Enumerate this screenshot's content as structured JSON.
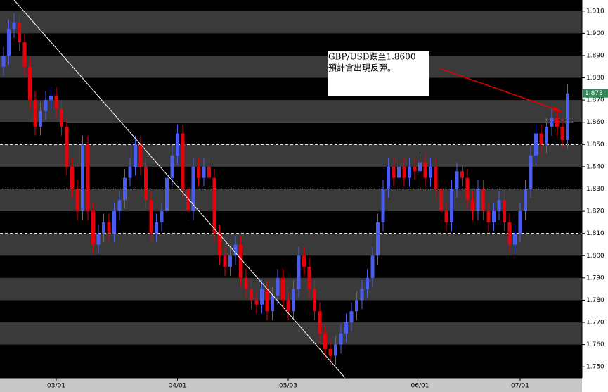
{
  "chart_data": {
    "type": "candlestick",
    "categories": [
      null,
      null,
      null,
      null,
      null,
      null,
      null,
      null,
      null,
      null,
      "03/01",
      null,
      null,
      null,
      null,
      null,
      null,
      null,
      null,
      null,
      null,
      null,
      null,
      null,
      null,
      null,
      null,
      null,
      null,
      null,
      null,
      null,
      null,
      "04/01",
      null,
      null,
      null,
      null,
      null,
      null,
      null,
      null,
      null,
      null,
      null,
      null,
      null,
      null,
      null,
      null,
      null,
      null,
      null,
      null,
      "05/03",
      null,
      null,
      null,
      null,
      null,
      null,
      null,
      null,
      null,
      null,
      null,
      null,
      null,
      null,
      null,
      null,
      null,
      null,
      null,
      null,
      null,
      null,
      null,
      null,
      "06/01",
      null,
      null,
      null,
      null,
      null,
      null,
      null,
      null,
      null,
      null,
      null,
      null,
      null,
      null,
      null,
      null,
      null,
      null,
      "07/01",
      null,
      null,
      null,
      null,
      null,
      null,
      null,
      null,
      null
    ],
    "open": [
      1.885,
      1.89,
      1.902,
      1.905,
      1.896,
      1.885,
      1.87,
      1.858,
      1.865,
      1.87,
      1.872,
      1.866,
      1.858,
      1.84,
      1.83,
      1.82,
      1.85,
      1.82,
      1.805,
      1.81,
      1.815,
      1.81,
      1.82,
      1.825,
      1.835,
      1.84,
      1.85,
      1.84,
      1.825,
      1.81,
      1.815,
      1.82,
      1.835,
      1.845,
      1.855,
      1.83,
      1.82,
      1.84,
      1.835,
      1.84,
      1.835,
      1.81,
      1.8,
      1.795,
      1.8,
      1.805,
      1.79,
      1.785,
      1.78,
      1.778,
      1.785,
      1.775,
      1.782,
      1.79,
      1.78,
      1.775,
      1.785,
      1.8,
      1.795,
      1.785,
      1.775,
      1.765,
      1.758,
      1.755,
      1.76,
      1.765,
      1.77,
      1.775,
      1.78,
      1.785,
      1.79,
      1.8,
      1.815,
      1.83,
      1.84,
      1.835,
      1.84,
      1.835,
      1.84,
      1.838,
      1.842,
      1.835,
      1.84,
      1.83,
      1.82,
      1.815,
      1.83,
      1.838,
      1.835,
      1.825,
      1.82,
      1.83,
      1.82,
      1.815,
      1.82,
      1.825,
      1.815,
      1.805,
      1.81,
      1.82,
      1.83,
      1.845,
      1.855,
      1.85,
      1.858,
      1.862,
      1.858,
      1.852
    ],
    "high": [
      1.894,
      1.906,
      1.909,
      1.909,
      1.9,
      1.889,
      1.874,
      1.869,
      1.874,
      1.876,
      1.876,
      1.87,
      1.862,
      1.844,
      1.834,
      1.854,
      1.854,
      1.824,
      1.814,
      1.819,
      1.819,
      1.824,
      1.829,
      1.839,
      1.844,
      1.854,
      1.854,
      1.844,
      1.829,
      1.819,
      1.824,
      1.839,
      1.849,
      1.859,
      1.859,
      1.834,
      1.844,
      1.844,
      1.844,
      1.844,
      1.839,
      1.814,
      1.804,
      1.804,
      1.809,
      1.809,
      1.794,
      1.789,
      1.784,
      1.789,
      1.789,
      1.786,
      1.794,
      1.794,
      1.784,
      1.789,
      1.804,
      1.804,
      1.799,
      1.789,
      1.779,
      1.769,
      1.762,
      1.764,
      1.769,
      1.774,
      1.779,
      1.784,
      1.789,
      1.794,
      1.804,
      1.819,
      1.834,
      1.844,
      1.844,
      1.844,
      1.844,
      1.844,
      1.844,
      1.846,
      1.846,
      1.844,
      1.844,
      1.834,
      1.824,
      1.834,
      1.842,
      1.842,
      1.839,
      1.829,
      1.834,
      1.834,
      1.824,
      1.824,
      1.829,
      1.829,
      1.819,
      1.814,
      1.824,
      1.834,
      1.849,
      1.859,
      1.859,
      1.862,
      1.866,
      1.866,
      1.862,
      1.877
    ],
    "low": [
      1.881,
      1.886,
      1.898,
      1.892,
      1.881,
      1.866,
      1.854,
      1.854,
      1.861,
      1.866,
      1.862,
      1.854,
      1.836,
      1.826,
      1.816,
      1.816,
      1.816,
      1.801,
      1.801,
      1.806,
      1.806,
      1.806,
      1.816,
      1.821,
      1.831,
      1.836,
      1.836,
      1.821,
      1.806,
      1.806,
      1.811,
      1.816,
      1.831,
      1.841,
      1.826,
      1.816,
      1.816,
      1.831,
      1.831,
      1.831,
      1.806,
      1.796,
      1.791,
      1.791,
      1.796,
      1.786,
      1.781,
      1.776,
      1.774,
      1.774,
      1.771,
      1.771,
      1.778,
      1.776,
      1.771,
      1.771,
      1.781,
      1.791,
      1.781,
      1.771,
      1.761,
      1.754,
      1.751,
      1.751,
      1.756,
      1.761,
      1.766,
      1.771,
      1.776,
      1.781,
      1.786,
      1.796,
      1.811,
      1.826,
      1.831,
      1.831,
      1.831,
      1.831,
      1.834,
      1.834,
      1.831,
      1.831,
      1.826,
      1.816,
      1.811,
      1.811,
      1.826,
      1.831,
      1.821,
      1.816,
      1.816,
      1.816,
      1.811,
      1.811,
      1.816,
      1.811,
      1.801,
      1.801,
      1.806,
      1.816,
      1.826,
      1.841,
      1.846,
      1.846,
      1.854,
      1.854,
      1.848,
      1.848
    ],
    "close": [
      1.89,
      1.902,
      1.905,
      1.896,
      1.885,
      1.87,
      1.858,
      1.865,
      1.87,
      1.872,
      1.866,
      1.858,
      1.84,
      1.83,
      1.82,
      1.85,
      1.82,
      1.805,
      1.81,
      1.815,
      1.81,
      1.82,
      1.825,
      1.835,
      1.84,
      1.85,
      1.84,
      1.825,
      1.81,
      1.815,
      1.82,
      1.835,
      1.845,
      1.855,
      1.83,
      1.82,
      1.84,
      1.835,
      1.84,
      1.835,
      1.81,
      1.8,
      1.795,
      1.8,
      1.805,
      1.79,
      1.785,
      1.78,
      1.778,
      1.785,
      1.775,
      1.782,
      1.79,
      1.78,
      1.775,
      1.785,
      1.8,
      1.795,
      1.785,
      1.775,
      1.765,
      1.758,
      1.755,
      1.76,
      1.765,
      1.77,
      1.775,
      1.78,
      1.785,
      1.79,
      1.8,
      1.815,
      1.83,
      1.84,
      1.835,
      1.84,
      1.835,
      1.84,
      1.838,
      1.842,
      1.835,
      1.84,
      1.83,
      1.82,
      1.815,
      1.83,
      1.838,
      1.835,
      1.825,
      1.82,
      1.83,
      1.82,
      1.815,
      1.82,
      1.825,
      1.815,
      1.805,
      1.81,
      1.82,
      1.83,
      1.845,
      1.855,
      1.85,
      1.858,
      1.862,
      1.858,
      1.852,
      1.873
    ],
    "up_color": "#4b5df0",
    "down_color": "#e8000b",
    "ylim": [
      1.745,
      1.915
    ],
    "yticks": [
      {
        "value": 1.75,
        "label": "1.750"
      },
      {
        "value": 1.76,
        "label": "1.760"
      },
      {
        "value": 1.77,
        "label": "1.770"
      },
      {
        "value": 1.78,
        "label": "1.780"
      },
      {
        "value": 1.79,
        "label": "1.790"
      },
      {
        "value": 1.8,
        "label": "1.800"
      },
      {
        "value": 1.81,
        "label": "1.810"
      },
      {
        "value": 1.82,
        "label": "1.820"
      },
      {
        "value": 1.83,
        "label": "1.830"
      },
      {
        "value": 1.84,
        "label": "1.840"
      },
      {
        "value": 1.85,
        "label": "1.850"
      },
      {
        "value": 1.86,
        "label": "1.860"
      },
      {
        "value": 1.87,
        "label": "1.870"
      },
      {
        "value": 1.88,
        "label": "1.880"
      },
      {
        "value": 1.89,
        "label": "1.890"
      },
      {
        "value": 1.9,
        "label": "1.900"
      },
      {
        "value": 1.91,
        "label": "1.910"
      }
    ],
    "dashed_lines": [
      1.85,
      1.83,
      1.81
    ],
    "solid_line": 1.86,
    "last_price": 1.873,
    "annotation": [
      "GBP/USD跌至1.8600",
      "預計會出現反彈。"
    ]
  }
}
